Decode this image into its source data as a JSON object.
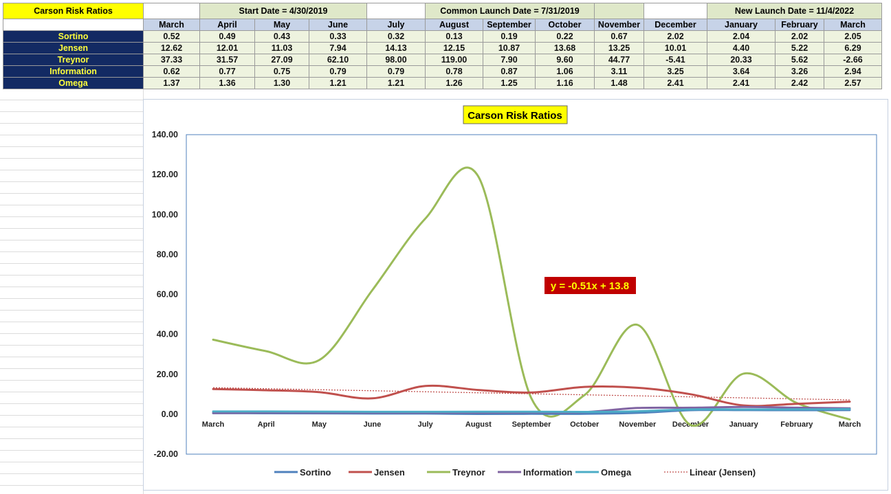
{
  "sheet": {
    "title": "Carson Risk Ratios",
    "banners": {
      "start": "Start Date = 4/30/2019",
      "common": "Common Launch Date = 7/31/2019",
      "new": "New Launch Date = 11/4/2022"
    },
    "months": [
      "March",
      "April",
      "May",
      "June",
      "July",
      "August",
      "September",
      "October",
      "November",
      "December",
      "January",
      "February",
      "March"
    ],
    "rows": [
      {
        "label": "Sortino",
        "values": [
          "0.52",
          "0.49",
          "0.43",
          "0.33",
          "0.32",
          "0.13",
          "0.19",
          "0.22",
          "0.67",
          "2.02",
          "2.04",
          "2.02",
          "2.05"
        ]
      },
      {
        "label": "Jensen",
        "values": [
          "12.62",
          "12.01",
          "11.03",
          "7.94",
          "14.13",
          "12.15",
          "10.87",
          "13.68",
          "13.25",
          "10.01",
          "4.40",
          "5.22",
          "6.29"
        ]
      },
      {
        "label": "Treynor",
        "values": [
          "37.33",
          "31.57",
          "27.09",
          "62.10",
          "98.00",
          "119.00",
          "7.90",
          "9.60",
          "44.77",
          "-5.41",
          "20.33",
          "5.62",
          "-2.66"
        ]
      },
      {
        "label": "Information",
        "values": [
          "0.62",
          "0.77",
          "0.75",
          "0.79",
          "0.79",
          "0.78",
          "0.87",
          "1.06",
          "3.11",
          "3.25",
          "3.64",
          "3.26",
          "2.94"
        ]
      },
      {
        "label": "Omega",
        "values": [
          "1.37",
          "1.36",
          "1.30",
          "1.21",
          "1.21",
          "1.26",
          "1.25",
          "1.16",
          "1.48",
          "2.41",
          "2.41",
          "2.42",
          "2.57"
        ]
      }
    ]
  },
  "chart_data": {
    "type": "line",
    "title": "Carson Risk Ratios",
    "categories": [
      "March",
      "April",
      "May",
      "June",
      "July",
      "August",
      "September",
      "October",
      "November",
      "December",
      "January",
      "February",
      "March"
    ],
    "series": [
      {
        "name": "Sortino",
        "color": "#4f81bd",
        "values": [
          0.52,
          0.49,
          0.43,
          0.33,
          0.32,
          0.13,
          0.19,
          0.22,
          0.67,
          2.02,
          2.04,
          2.02,
          2.05
        ]
      },
      {
        "name": "Jensen",
        "color": "#c0504d",
        "values": [
          12.62,
          12.01,
          11.03,
          7.94,
          14.13,
          12.15,
          10.87,
          13.68,
          13.25,
          10.01,
          4.4,
          5.22,
          6.29
        ]
      },
      {
        "name": "Treynor",
        "color": "#9bbb59",
        "values": [
          37.33,
          31.57,
          27.09,
          62.1,
          98.0,
          119.0,
          7.9,
          9.6,
          44.77,
          -5.41,
          20.33,
          5.62,
          -2.66
        ]
      },
      {
        "name": "Information",
        "color": "#8064a2",
        "values": [
          0.62,
          0.77,
          0.75,
          0.79,
          0.79,
          0.78,
          0.87,
          1.06,
          3.11,
          3.25,
          3.64,
          3.26,
          2.94
        ]
      },
      {
        "name": "Omega",
        "color": "#4bacc6",
        "values": [
          1.37,
          1.36,
          1.3,
          1.21,
          1.21,
          1.26,
          1.25,
          1.16,
          1.48,
          2.41,
          2.41,
          2.42,
          2.57
        ]
      }
    ],
    "trendline": {
      "name": "Linear (Jensen)",
      "color": "#c0504d",
      "slope": -0.51,
      "intercept": 13.8,
      "equation": "y = -0.51x + 13.8"
    },
    "ylim": [
      -20,
      140
    ],
    "yticks": [
      "-20.00",
      "0.00",
      "20.00",
      "40.00",
      "60.00",
      "80.00",
      "100.00",
      "120.00",
      "140.00"
    ],
    "ytick_values": [
      -20,
      0,
      20,
      40,
      60,
      80,
      100,
      120,
      140
    ],
    "grid": false,
    "legend_position": "bottom"
  }
}
